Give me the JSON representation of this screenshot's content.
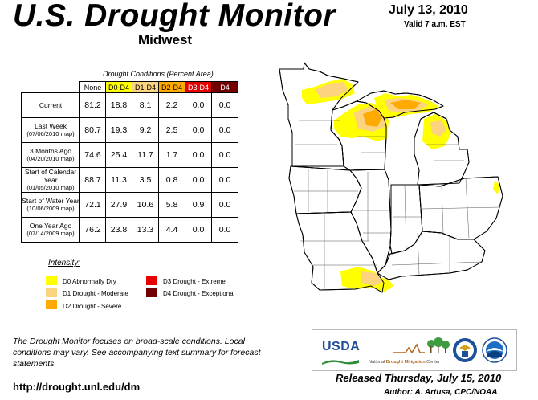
{
  "header": {
    "title": "U.S. Drought Monitor",
    "region": "Midwest",
    "date": "July 13, 2010",
    "valid": "Valid 7 a.m. EST"
  },
  "table": {
    "caption": "Drought Conditions (Percent Area)",
    "columns": [
      "None",
      "D0-D4",
      "D1-D4",
      "D2-D4",
      "D3-D4",
      "D4"
    ],
    "column_colors": [
      "#ffffff",
      "#ffff00",
      "#fcd37f",
      "#ffaa00",
      "#e60000",
      "#730000"
    ],
    "column_text_colors": [
      "#000000",
      "#000000",
      "#000000",
      "#000000",
      "#ffffff",
      "#ffffff"
    ],
    "rows": [
      {
        "label": "Current",
        "sub": "",
        "values": [
          "81.2",
          "18.8",
          "8.1",
          "2.2",
          "0.0",
          "0.0"
        ]
      },
      {
        "label": "Last Week",
        "sub": "(07/06/2010 map)",
        "values": [
          "80.7",
          "19.3",
          "9.2",
          "2.5",
          "0.0",
          "0.0"
        ]
      },
      {
        "label": "3 Months Ago",
        "sub": "(04/20/2010 map)",
        "values": [
          "74.6",
          "25.4",
          "11.7",
          "1.7",
          "0.0",
          "0.0"
        ]
      },
      {
        "label": "Start of Calendar Year",
        "sub": "(01/05/2010 map)",
        "values": [
          "88.7",
          "11.3",
          "3.5",
          "0.8",
          "0.0",
          "0.0"
        ]
      },
      {
        "label": "Start of Water Year",
        "sub": "(10/06/2009 map)",
        "values": [
          "72.1",
          "27.9",
          "10.6",
          "5.8",
          "0.9",
          "0.0"
        ]
      },
      {
        "label": "One Year Ago",
        "sub": "(07/14/2009 map)",
        "values": [
          "76.2",
          "23.8",
          "13.3",
          "4.4",
          "0.0",
          "0.0"
        ]
      }
    ]
  },
  "legend": {
    "title": "Intensity:",
    "items": [
      {
        "label": "D0 Abnormally Dry",
        "color": "#ffff00"
      },
      {
        "label": "D1 Drought - Moderate",
        "color": "#fcd37f"
      },
      {
        "label": "D2 Drought - Severe",
        "color": "#ffaa00"
      },
      {
        "label": "D3 Drought - Extreme",
        "color": "#e60000"
      },
      {
        "label": "D4 Drought - Exceptional",
        "color": "#730000"
      }
    ]
  },
  "footer": {
    "note": "The Drought Monitor focuses on broad-scale conditions. Local conditions may vary. See accompanying text summary for forecast statements",
    "url": "http://drought.unl.edu/dm",
    "released": "Released Thursday, July 15, 2010",
    "author": "Author: A. Artusa, CPC/NOAA"
  },
  "logos": {
    "usda": "USDA",
    "ndmc_prefix": "National",
    "ndmc_main": "Drought Mitigation",
    "ndmc_suffix": "Center"
  },
  "map": {
    "state_fill": "#ffffff",
    "border_color": "#000000",
    "drought_colors": {
      "D0": "#ffff00",
      "D1": "#fcd37f",
      "D2": "#ffaa00"
    }
  }
}
